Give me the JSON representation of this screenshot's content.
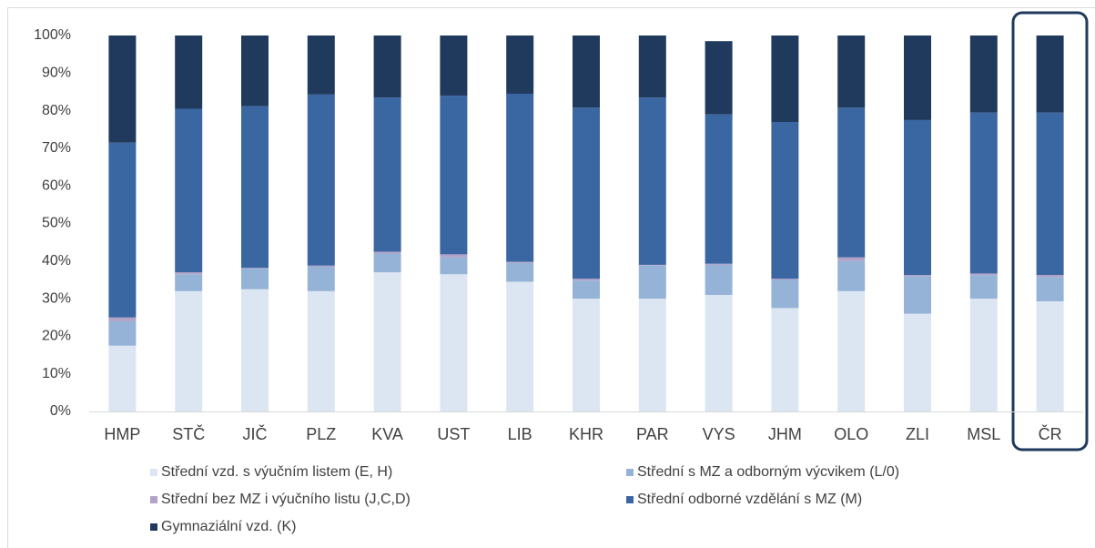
{
  "chart_data": {
    "type": "stacked_bar",
    "categories": [
      "HMP",
      "STČ",
      "JIČ",
      "PLZ",
      "KVA",
      "UST",
      "LIB",
      "KHR",
      "PAR",
      "VYS",
      "JHM",
      "OLO",
      "ZLI",
      "MSL",
      "ČR"
    ],
    "series": [
      {
        "name": "Střední vzd. s výučním listem (E, H)",
        "color": "#dce6f2",
        "values": [
          17.5,
          32,
          32.5,
          32,
          37,
          36.5,
          34.5,
          30,
          30,
          31,
          27.5,
          32,
          26,
          30,
          29.3
        ]
      },
      {
        "name": "Střední s MZ a odborným výcvikem (L/0)",
        "color": "#95b3d7",
        "values": [
          6.5,
          4.5,
          5.5,
          6.5,
          5,
          4.5,
          5,
          4.8,
          8.8,
          8,
          7.5,
          8,
          10,
          6.3,
          6.5
        ]
      },
      {
        "name": "Střední bez MZ i výučního listu (J,C,D)",
        "color": "#b3a2c7",
        "values": [
          1,
          0.5,
          0.2,
          0.3,
          0.5,
          0.8,
          0.3,
          0.5,
          0.2,
          0.3,
          0.3,
          1,
          0.3,
          0.4,
          0.5
        ]
      },
      {
        "name": "Střední odborné vzdělání s MZ (M)",
        "color": "#3a66a2",
        "values": [
          46.5,
          43.5,
          43,
          45.5,
          41,
          42.2,
          44.7,
          45.5,
          44.5,
          39.7,
          41.7,
          39.8,
          41.2,
          42.8,
          43.2
        ]
      },
      {
        "name": "Gymnaziální vzd. (K)",
        "color": "#203a5e",
        "values": [
          28.5,
          19.5,
          18.8,
          15.7,
          16.5,
          16,
          15.5,
          19.2,
          16.5,
          19.5,
          23,
          19.2,
          22.5,
          20.5,
          20.5
        ]
      }
    ],
    "ylim": [
      0,
      100
    ],
    "yticks": [
      {
        "value": 0,
        "label": "0%"
      },
      {
        "value": 10,
        "label": "10%"
      },
      {
        "value": 20,
        "label": "20%"
      },
      {
        "value": 30,
        "label": "30%"
      },
      {
        "value": 40,
        "label": "40%"
      },
      {
        "value": 50,
        "label": "50%"
      },
      {
        "value": 60,
        "label": "60%"
      },
      {
        "value": 70,
        "label": "70%"
      },
      {
        "value": 80,
        "label": "80%"
      },
      {
        "value": 90,
        "label": "90%"
      },
      {
        "value": 100,
        "label": "100%"
      }
    ],
    "grid": false
  }
}
